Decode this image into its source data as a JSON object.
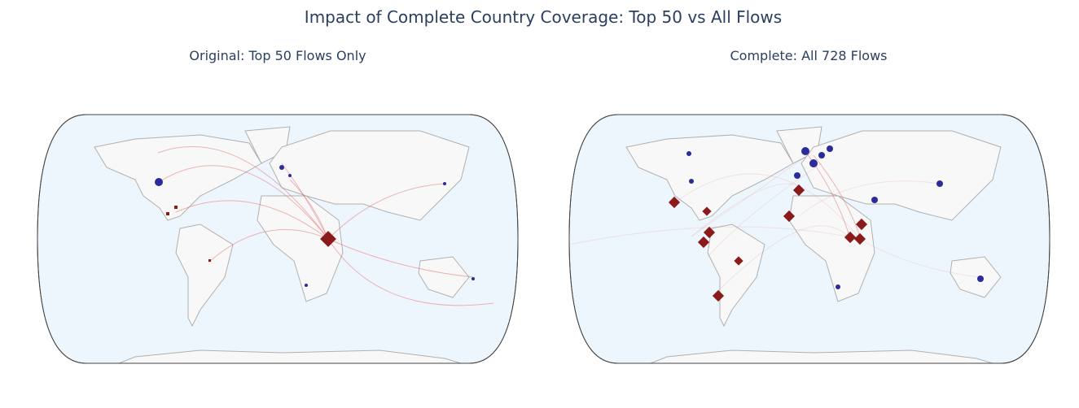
{
  "title": "Impact of Complete Country Coverage: Top 50 vs All Flows",
  "maps": [
    {
      "title": "Original: Top 50 Flows Only"
    },
    {
      "title": "Complete: All 728 Flows"
    }
  ]
}
